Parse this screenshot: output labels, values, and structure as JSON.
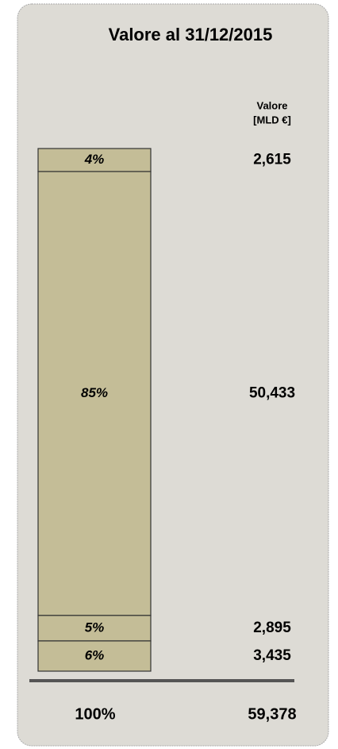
{
  "chart_data": {
    "type": "stacked_column",
    "title": "Valore al 31/12/2015",
    "column_header": [
      "Valore",
      "[MLD €]"
    ],
    "values": [
      2.615,
      50.433,
      2.895,
      3.435
    ],
    "value_labels": [
      "2,615",
      "50,433",
      "2,895",
      "3,435"
    ],
    "shares": [
      4,
      85,
      5,
      6
    ],
    "share_labels": [
      "4%",
      "85%",
      "5%",
      "6%"
    ],
    "total": 59.378,
    "total_label": "59,378",
    "total_share": 100,
    "total_share_label": "100%",
    "color": "#c4bd97"
  }
}
